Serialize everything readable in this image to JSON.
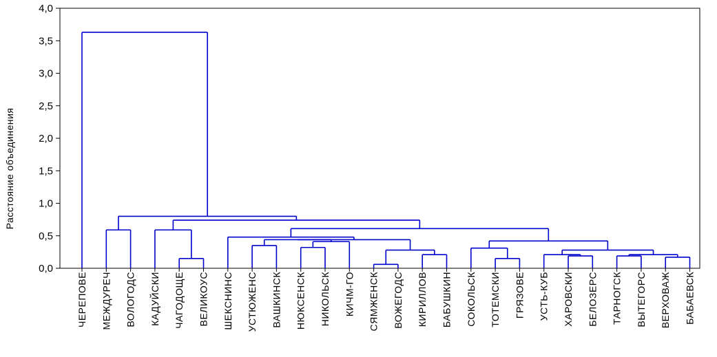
{
  "chart_data": {
    "type": "dendrogram",
    "ylabel": "Расстояние объединения",
    "ylim": [
      0,
      4.0
    ],
    "yticks": [
      "0,0",
      "0,5",
      "1,0",
      "1,5",
      "2,0",
      "2,5",
      "3,0",
      "3,5",
      "4,0"
    ],
    "grid": false,
    "line_color": "#0000cc",
    "leaves": [
      "ЧЕРЕПОВЕ",
      "МЕЖДУРЕЧ",
      "ВОЛОГОДС",
      "КАДУЙСКИ",
      "ЧАГОДОЩЕ",
      "ВЕЛИКОУС",
      "ШЕКСНИНС",
      "УСТЮЖЕНС",
      "ВАШКИНСК",
      "НЮКСЕНСК",
      "НИКОЛЬСК",
      "КИЧМ-ГО",
      "СЯМЖЕНСК",
      "ВОЖЕГОДС",
      "КИРИЛЛОВ",
      "БАБУШКИН",
      "СОКОЛЬСК",
      "ТОТЕМСКИ",
      "ГРЯЗОВЕ",
      "УСТЬ-КУБ",
      "ХАРОВСКИ",
      "БЕЛОЗЕРС",
      "ТАРНОГСК",
      "ВЫТЕГОРС",
      "ВЕРХОВАЖ",
      "БАБАЕВСК"
    ],
    "merges": [
      {
        "left": "СЯМЖЕНСК",
        "right": "ВОЖЕГОДС",
        "height": 0.06
      },
      {
        "left": "ЧАГОДОЩЕ",
        "right": "ВЕЛИКОУС",
        "height": 0.15
      },
      {
        "left": "ТОТЕМСКИ",
        "right": "ГРЯЗОВЕ",
        "height": 0.15
      },
      {
        "left": "ВЕРХОВАЖ",
        "right": "БАБАЕВСК",
        "height": 0.17
      },
      {
        "left": "ТАРНОГСК",
        "right": "ВЫТЕГОРС",
        "height": 0.19
      },
      {
        "left": "ХАРОВСКИ",
        "right": "БЕЛОЗЕРС",
        "height": 0.19
      },
      {
        "left": "КИРИЛЛОВ",
        "right": "БАБУШКИН",
        "height": 0.21
      },
      {
        "left": "УСТЬ-КУБ",
        "right": "ХАРОВСКИ+БЕЛОЗЕРС",
        "height": 0.21
      },
      {
        "left": "ТАРНОГСК+ВЫТЕГОРС",
        "right": "ВЕРХОВАЖ+БАБАЕВСК",
        "height": 0.21
      },
      {
        "left": "СЯМЖЕНСК+ВОЖЕГОДС",
        "right": "КИРИЛЛОВ+БАБУШКИН",
        "height": 0.28
      },
      {
        "left": "УСТЬ-КУБ+ХАРОВСКИ+БЕЛОЗЕРС",
        "right": "ТАРНОГСК+ВЫТЕГОРС+ВЕРХОВАЖ+БАБАЕВСК",
        "height": 0.28
      },
      {
        "left": "НЮКСЕНСК",
        "right": "НИКОЛЬСК",
        "height": 0.32
      },
      {
        "left": "СОКОЛЬСК",
        "right": "ТОТЕМСКИ+ГРЯЗОВЕ",
        "height": 0.31
      },
      {
        "left": "УСТЮЖЕНС",
        "right": "ВАШКИНСК",
        "height": 0.35
      },
      {
        "left": "НЮКСЕНСК+НИКОЛЬСК",
        "right": "КИЧМ-ГО",
        "height": 0.41
      },
      {
        "left": "УСТЮЖЕНС+ВАШКИНСК",
        "right": "НЮКСЕНСК+НИКОЛЬСК+КИЧМ-ГО",
        "height": 0.44
      },
      {
        "left": "УСТЮЖЕНС…КИЧМ-ГО",
        "right": "СЯМЖЕНСК…БАБУШКИН",
        "height": 0.44
      },
      {
        "left": "СОКОЛЬСК…ГРЯЗОВЕ",
        "right": "УСТЬ-КУБ…БАБАЕВСК",
        "height": 0.42
      },
      {
        "left": "ШЕКСНИНС",
        "right": "УСТЮЖЕНС…БАБУШКИН",
        "height": 0.48
      },
      {
        "left": "МЕЖДУРЕЧ",
        "right": "ВОЛОГОДС",
        "height": 0.59
      },
      {
        "left": "КАДУЙСКИ",
        "right": "ЧАГОДОЩЕ+ВЕЛИКОУС",
        "height": 0.59
      },
      {
        "left": "ШЕКСНИНС…БАБУШКИН",
        "right": "СОКОЛЬСК…БАБАЕВСК",
        "height": 0.61
      },
      {
        "left": "КАДУЙСКИ…ВЕЛИКОУС",
        "right": "ШЕКСНИНС…БАБАЕВСК",
        "height": 0.74
      },
      {
        "left": "МЕЖДУРЕЧ+ВОЛОГОДС",
        "right": "КАДУЙСКИ…БАБАЕВСК",
        "height": 0.8
      },
      {
        "left": "ЧЕРЕПОВЕ",
        "right": "МЕЖДУРЕЧ…БАБАЕВСК",
        "height": 3.63
      }
    ]
  }
}
